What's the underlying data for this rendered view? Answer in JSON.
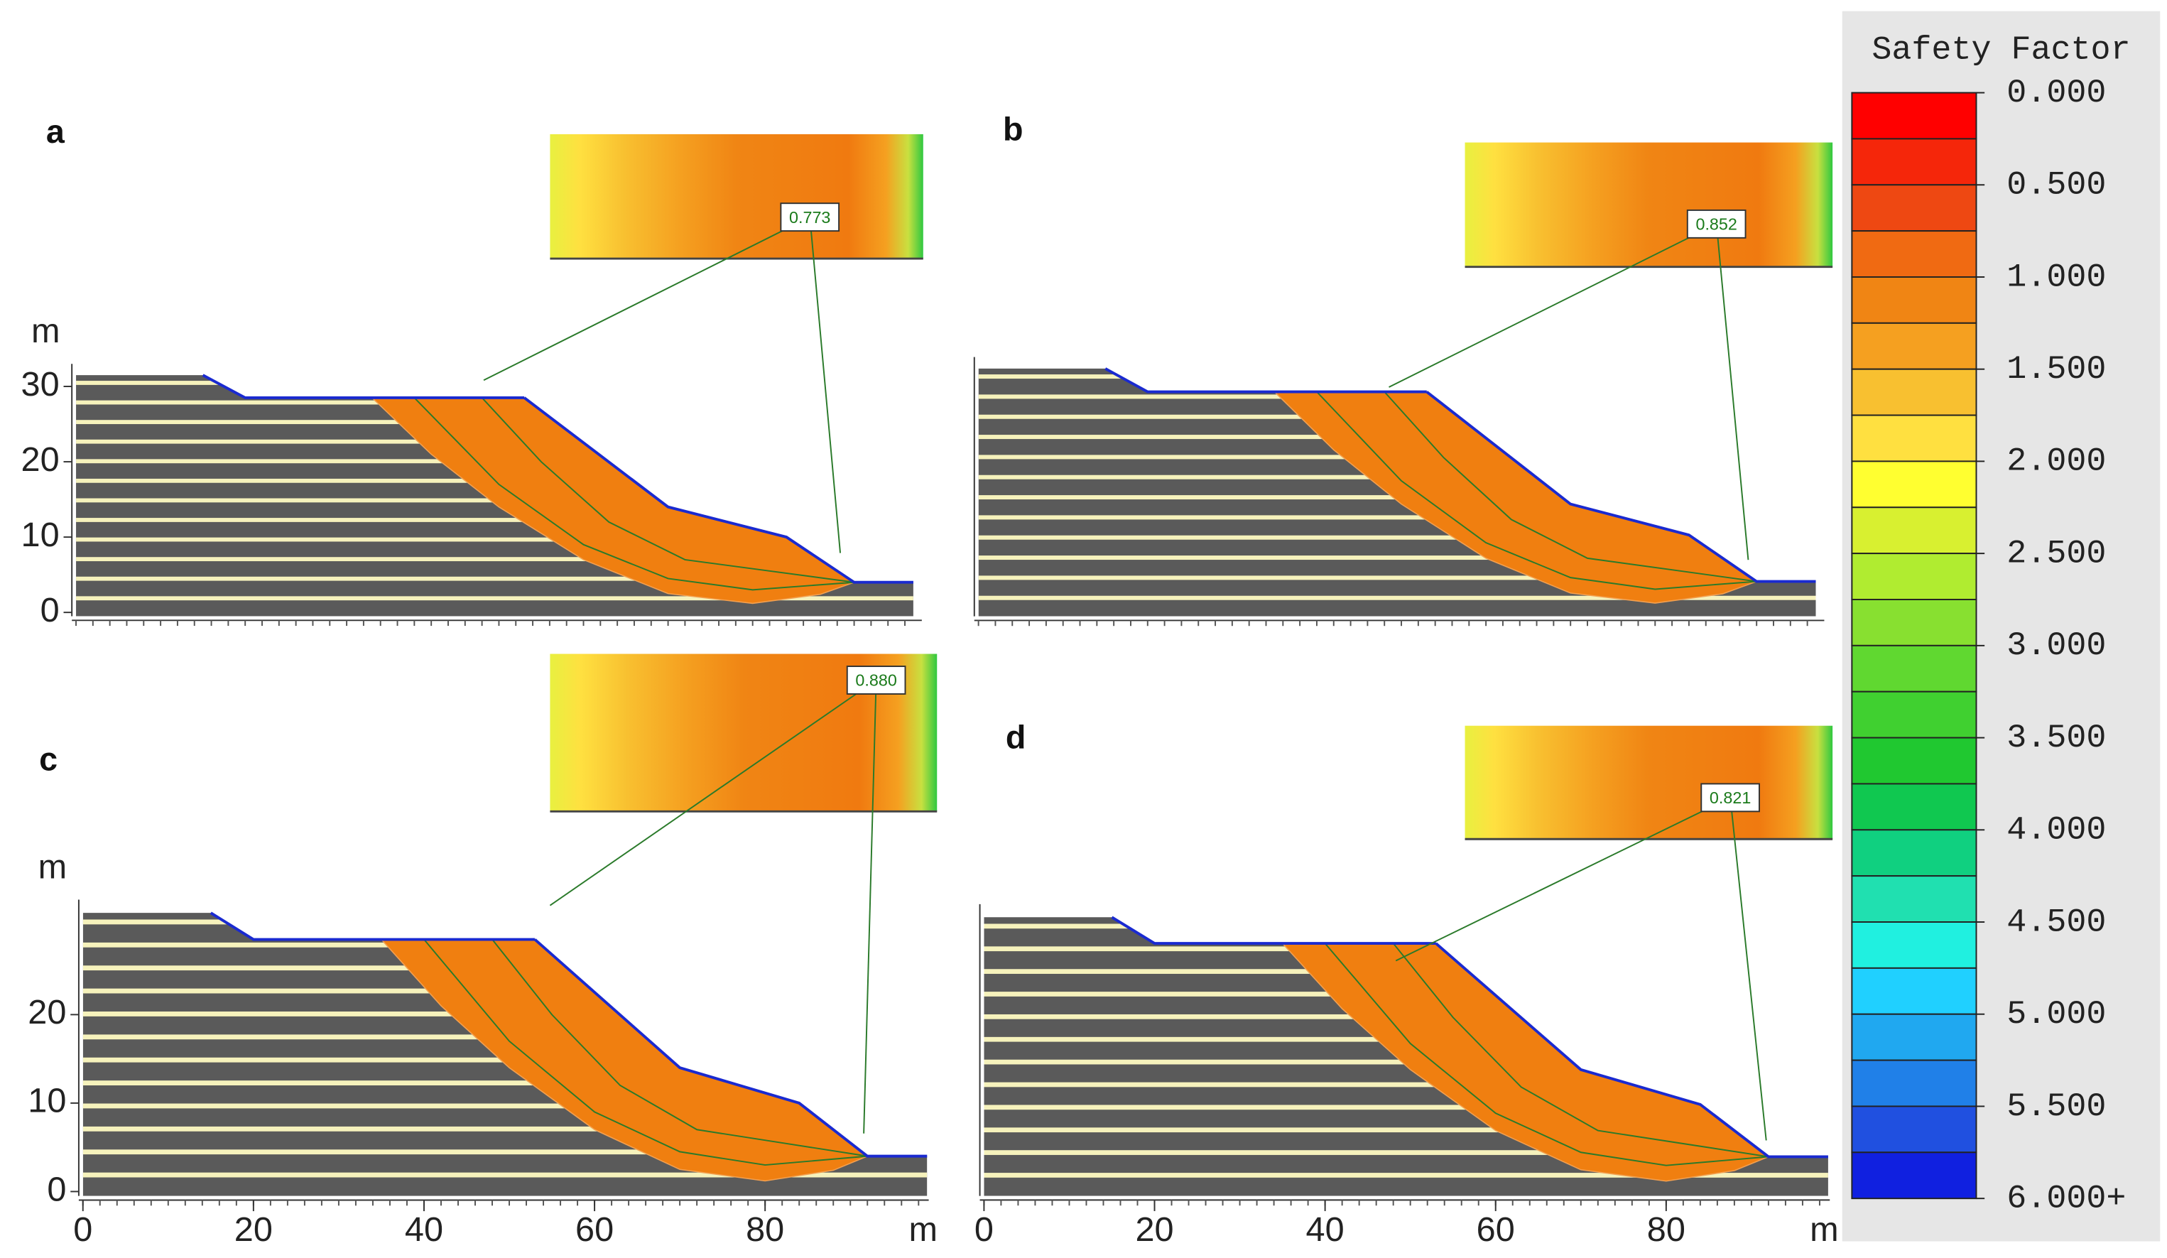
{
  "legend": {
    "title": "Safety Factor",
    "colors": [
      "#ff0000",
      "#f5260a",
      "#ee4812",
      "#f06a12",
      "#f08514",
      "#f5a020",
      "#f8c030",
      "#ffe040",
      "#ffff30",
      "#d8f030",
      "#b0ec30",
      "#88e030",
      "#60d830",
      "#40d030",
      "#20c830",
      "#10c850",
      "#10d080",
      "#20e0b0",
      "#20f0e0",
      "#20d0ff",
      "#20a8f0",
      "#2080e8",
      "#2050e0",
      "#1020e0"
    ],
    "ticks": [
      {
        "value": 0,
        "label": "0.000"
      },
      {
        "value": 0.5,
        "label": "0.500"
      },
      {
        "value": 1,
        "label": "1.000"
      },
      {
        "value": 1.5,
        "label": "1.500"
      },
      {
        "value": 2,
        "label": "2.000"
      },
      {
        "value": 2.5,
        "label": "2.500"
      },
      {
        "value": 3,
        "label": "3.000"
      },
      {
        "value": 3.5,
        "label": "3.500"
      },
      {
        "value": 4,
        "label": "4.000"
      },
      {
        "value": 4.5,
        "label": "4.500"
      },
      {
        "value": 5,
        "label": "5.000"
      },
      {
        "value": 5.5,
        "label": "5.500"
      },
      {
        "value": 6,
        "label": "6.000+"
      }
    ],
    "lim": [
      0,
      6
    ]
  },
  "panels": [
    {
      "label": "a",
      "fos": "0.773",
      "y_unit": "m",
      "yticks": [
        0,
        10,
        20,
        30
      ]
    },
    {
      "label": "b",
      "fos": "0.852"
    },
    {
      "label": "c",
      "fos": "0.880",
      "y_unit": "m",
      "yticks": [
        0,
        10,
        20
      ],
      "x_unit": "m",
      "xticks": [
        0,
        20,
        40,
        60,
        80
      ]
    },
    {
      "label": "d",
      "fos": "0.821",
      "x_unit": "m",
      "xticks": [
        0,
        20,
        40,
        60,
        80
      ]
    }
  ]
}
